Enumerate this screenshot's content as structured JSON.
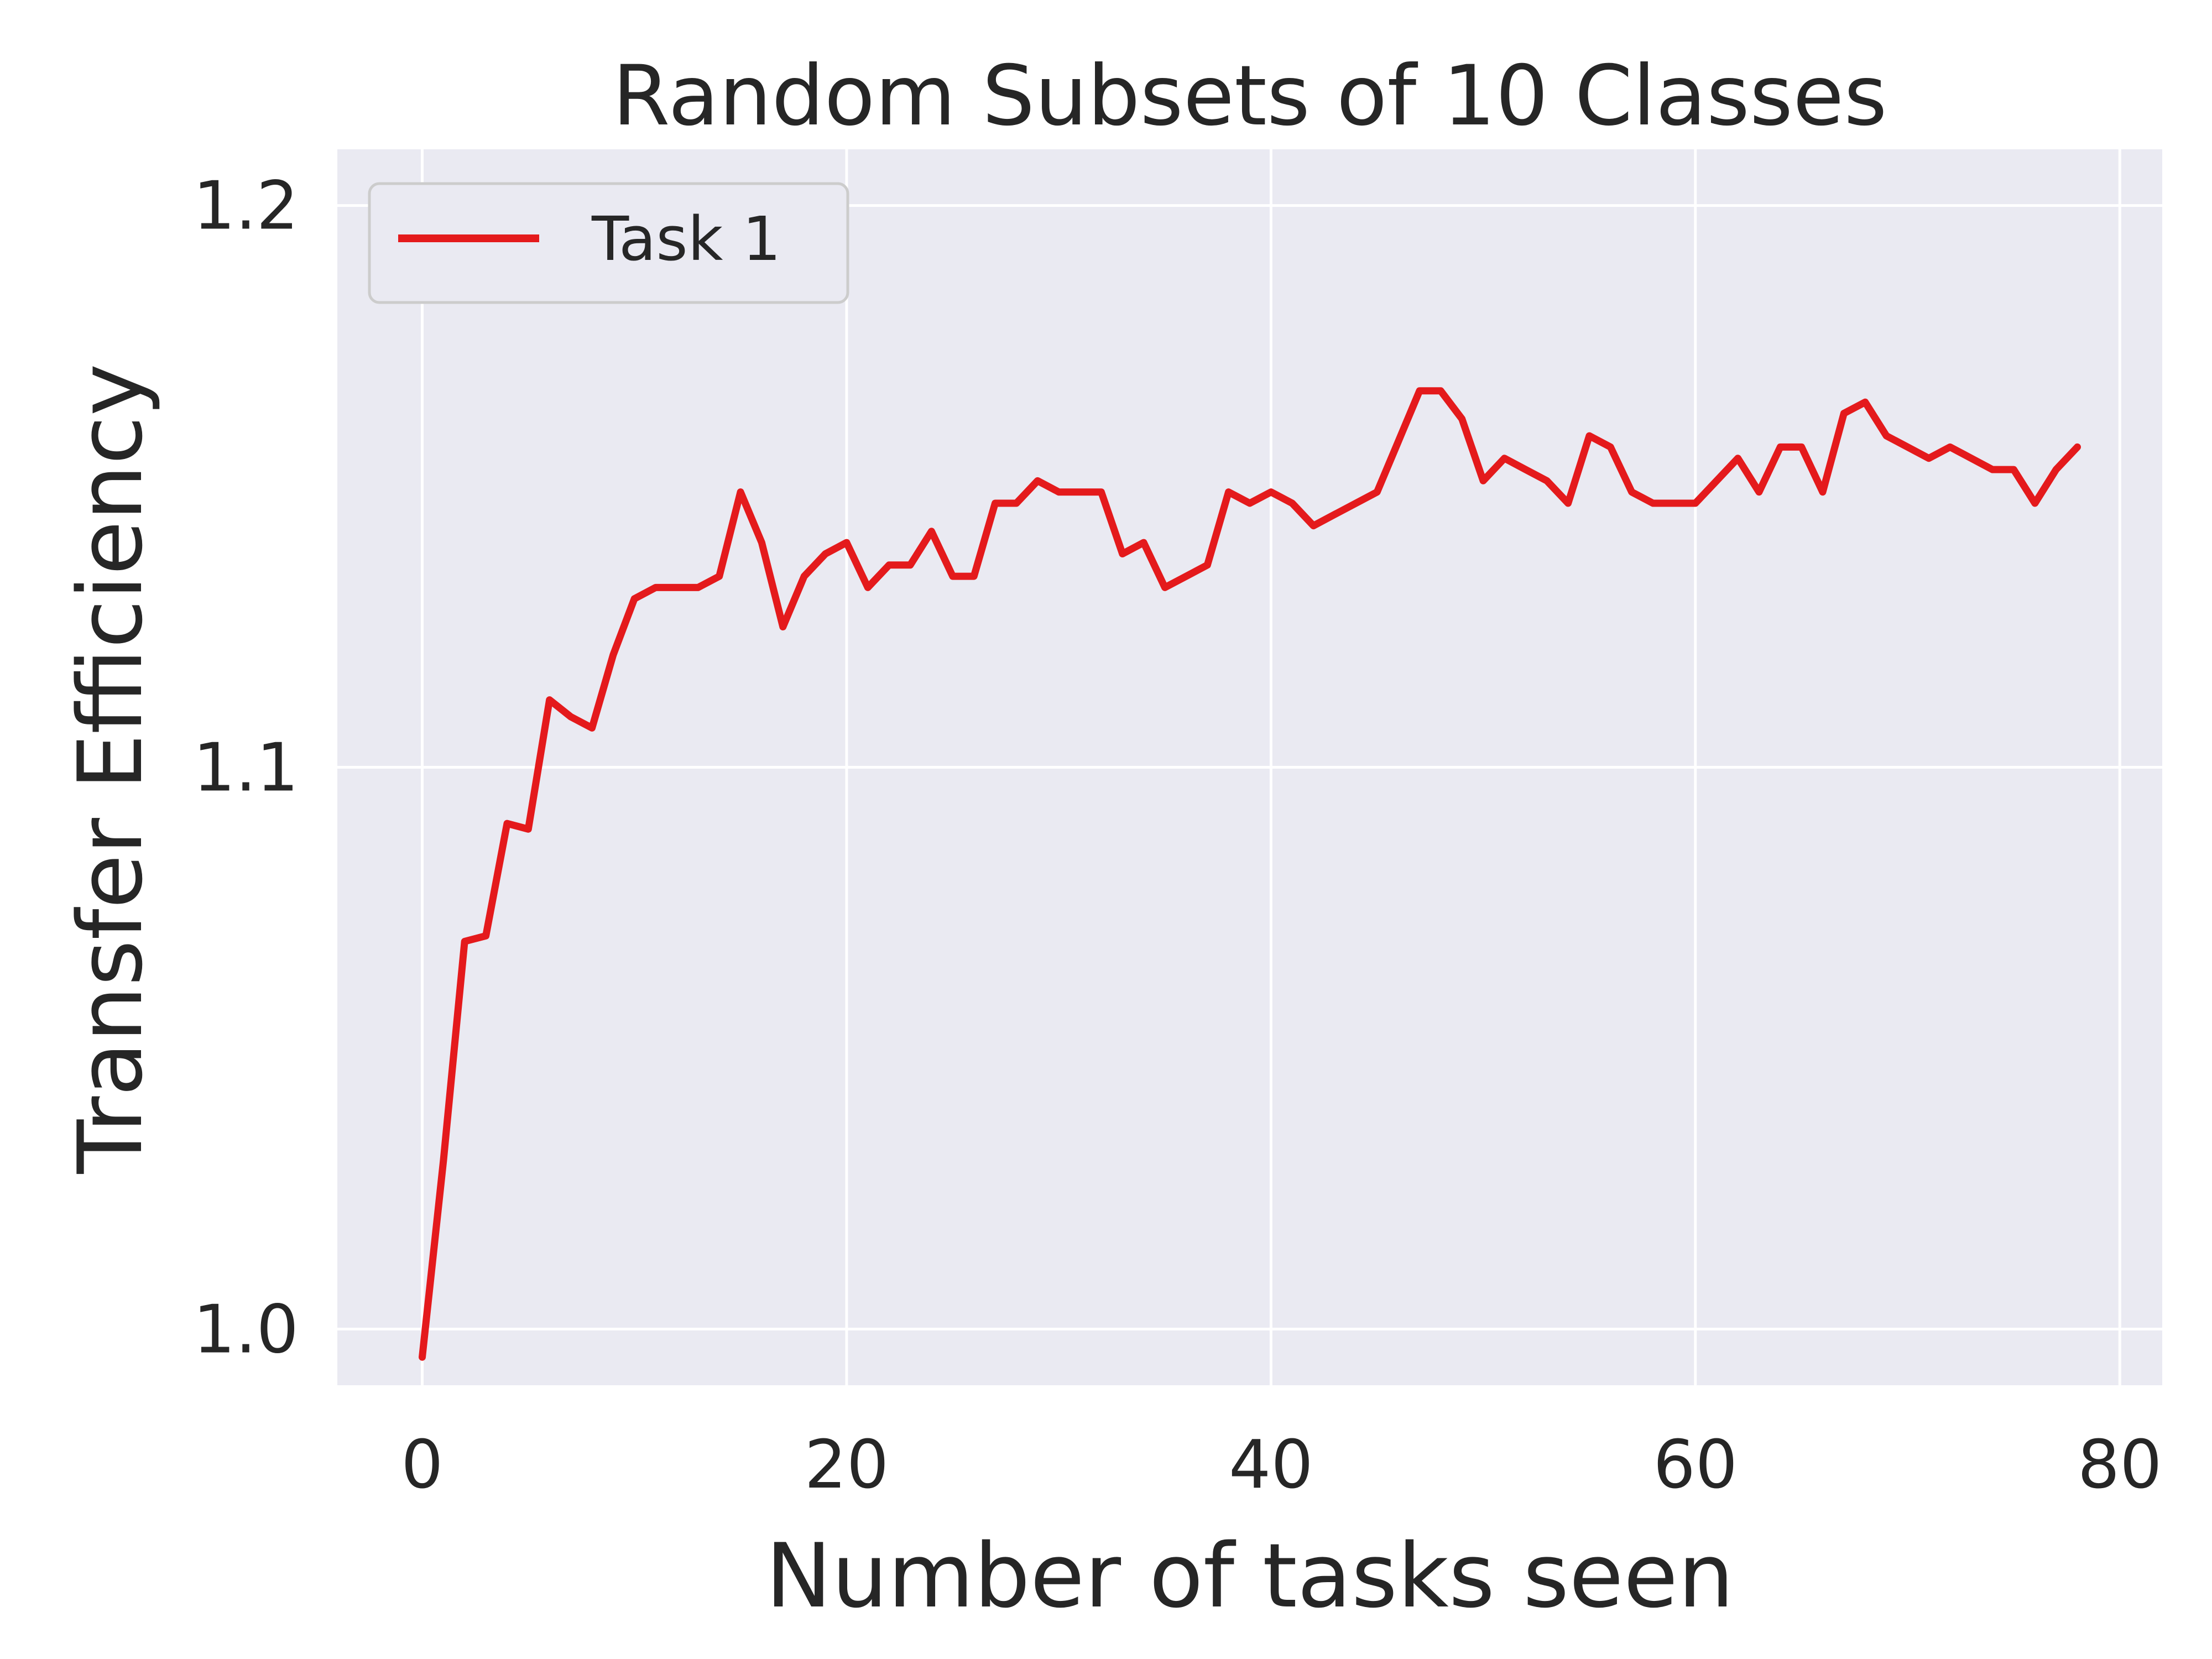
{
  "chart_data": {
    "type": "line",
    "title": "Random Subsets of 10 Classes",
    "xlabel": "Number of tasks seen",
    "ylabel": "Transfer Efficiency",
    "xlim": [
      -4,
      82
    ],
    "ylim": [
      0.99,
      1.21
    ],
    "x_ticks": [
      0,
      20,
      40,
      60,
      80
    ],
    "y_ticks": [
      1.0,
      1.1,
      1.2
    ],
    "x_tick_labels": [
      "0",
      "20",
      "40",
      "60",
      "80"
    ],
    "y_tick_labels": [
      "1.0",
      "1.1",
      "1.2"
    ],
    "grid": true,
    "legend_position": "top-left",
    "series": [
      {
        "name": "Task 1",
        "color": "#e41a1c",
        "x": [
          0,
          1,
          2,
          3,
          4,
          5,
          6,
          7,
          8,
          9,
          10,
          11,
          12,
          13,
          14,
          15,
          16,
          17,
          18,
          19,
          20,
          21,
          22,
          23,
          24,
          25,
          26,
          27,
          28,
          29,
          30,
          31,
          32,
          33,
          34,
          35,
          36,
          37,
          38,
          39,
          40,
          41,
          42,
          43,
          44,
          45,
          46,
          47,
          48,
          49,
          50,
          51,
          52,
          53,
          54,
          55,
          56,
          57,
          58,
          59,
          60,
          61,
          62,
          63,
          64,
          65,
          66,
          67,
          68,
          69,
          70,
          71,
          72,
          73,
          74,
          75,
          76,
          77,
          78
        ],
        "y": [
          0.995,
          1.03,
          1.069,
          1.07,
          1.09,
          1.089,
          1.112,
          1.109,
          1.107,
          1.12,
          1.13,
          1.132,
          1.132,
          1.132,
          1.134,
          1.149,
          1.14,
          1.125,
          1.134,
          1.138,
          1.14,
          1.132,
          1.136,
          1.136,
          1.142,
          1.134,
          1.134,
          1.147,
          1.147,
          1.151,
          1.149,
          1.149,
          1.149,
          1.138,
          1.14,
          1.132,
          1.134,
          1.136,
          1.149,
          1.147,
          1.149,
          1.147,
          1.143,
          1.145,
          1.147,
          1.149,
          1.158,
          1.167,
          1.167,
          1.162,
          1.151,
          1.155,
          1.153,
          1.151,
          1.147,
          1.159,
          1.157,
          1.149,
          1.147,
          1.147,
          1.147,
          1.151,
          1.155,
          1.149,
          1.157,
          1.157,
          1.149,
          1.163,
          1.165,
          1.159,
          1.157,
          1.155,
          1.157,
          1.155,
          1.153,
          1.153,
          1.147,
          1.153,
          1.157
        ]
      }
    ]
  }
}
